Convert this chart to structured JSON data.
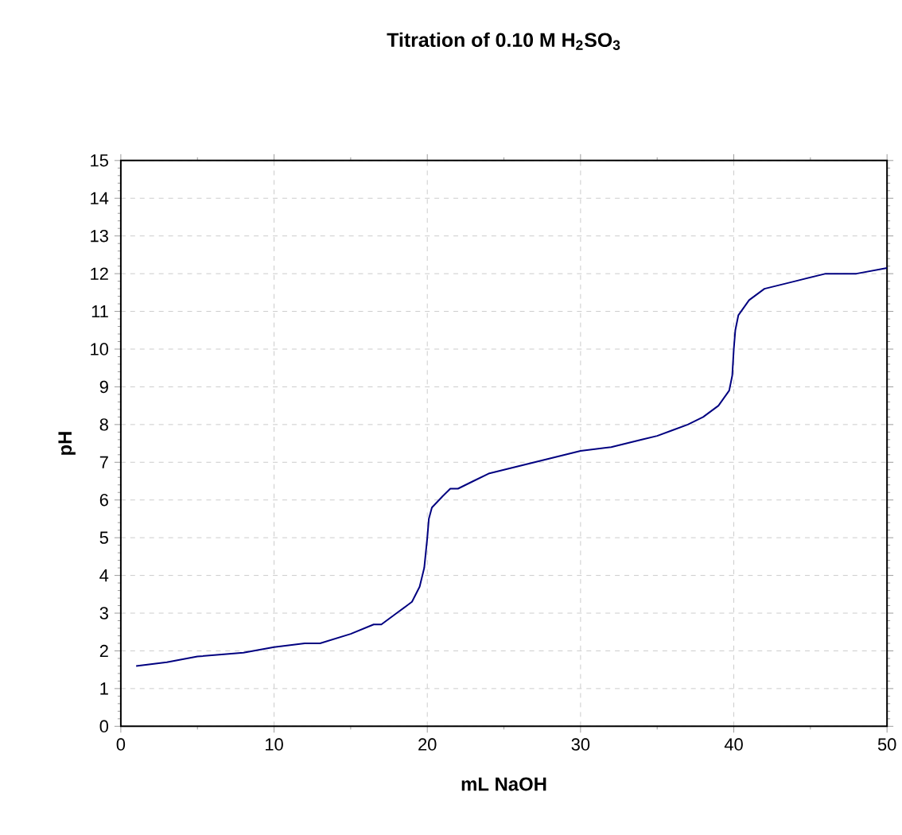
{
  "chart_data": {
    "type": "line",
    "title": "Titration of 0.10 M H$_{2}$SO$_{3}$",
    "xlabel": "mL NaOH",
    "ylabel": "pH",
    "xlim": [
      0,
      50
    ],
    "xticks": [
      0,
      10,
      20,
      30,
      40,
      50
    ],
    "ylim": [
      0,
      15
    ],
    "yticks": [
      0,
      1,
      2,
      3,
      4,
      5,
      6,
      7,
      8,
      9,
      10,
      11,
      12,
      13,
      14,
      15
    ],
    "grid": true,
    "marker": "none",
    "line_style": "solid",
    "series": [
      {
        "color": "#000080",
        "x": [
          1,
          3,
          5,
          8,
          10,
          12,
          13,
          15,
          16.5,
          17,
          18,
          19,
          19.5,
          19.8,
          20,
          20.1,
          20.3,
          21,
          21.5,
          22,
          23,
          24,
          26,
          28,
          30,
          31,
          32,
          34,
          35,
          36,
          37,
          38,
          39,
          39.7,
          39.9,
          40,
          40.1,
          40.3,
          41,
          42,
          44,
          46,
          47,
          48,
          50
        ],
        "values": [
          1.6,
          1.7,
          1.85,
          1.95,
          2.1,
          2.2,
          2.2,
          2.45,
          2.7,
          2.7,
          3.0,
          3.3,
          3.7,
          4.2,
          5.0,
          5.5,
          5.8,
          6.1,
          6.3,
          6.3,
          6.5,
          6.7,
          6.9,
          7.1,
          7.3,
          7.35,
          7.4,
          7.6,
          7.7,
          7.85,
          8.0,
          8.2,
          8.5,
          8.9,
          9.3,
          10.0,
          10.5,
          10.9,
          11.3,
          11.6,
          11.8,
          12.0,
          12.0,
          12.0,
          12.15
        ]
      }
    ]
  }
}
